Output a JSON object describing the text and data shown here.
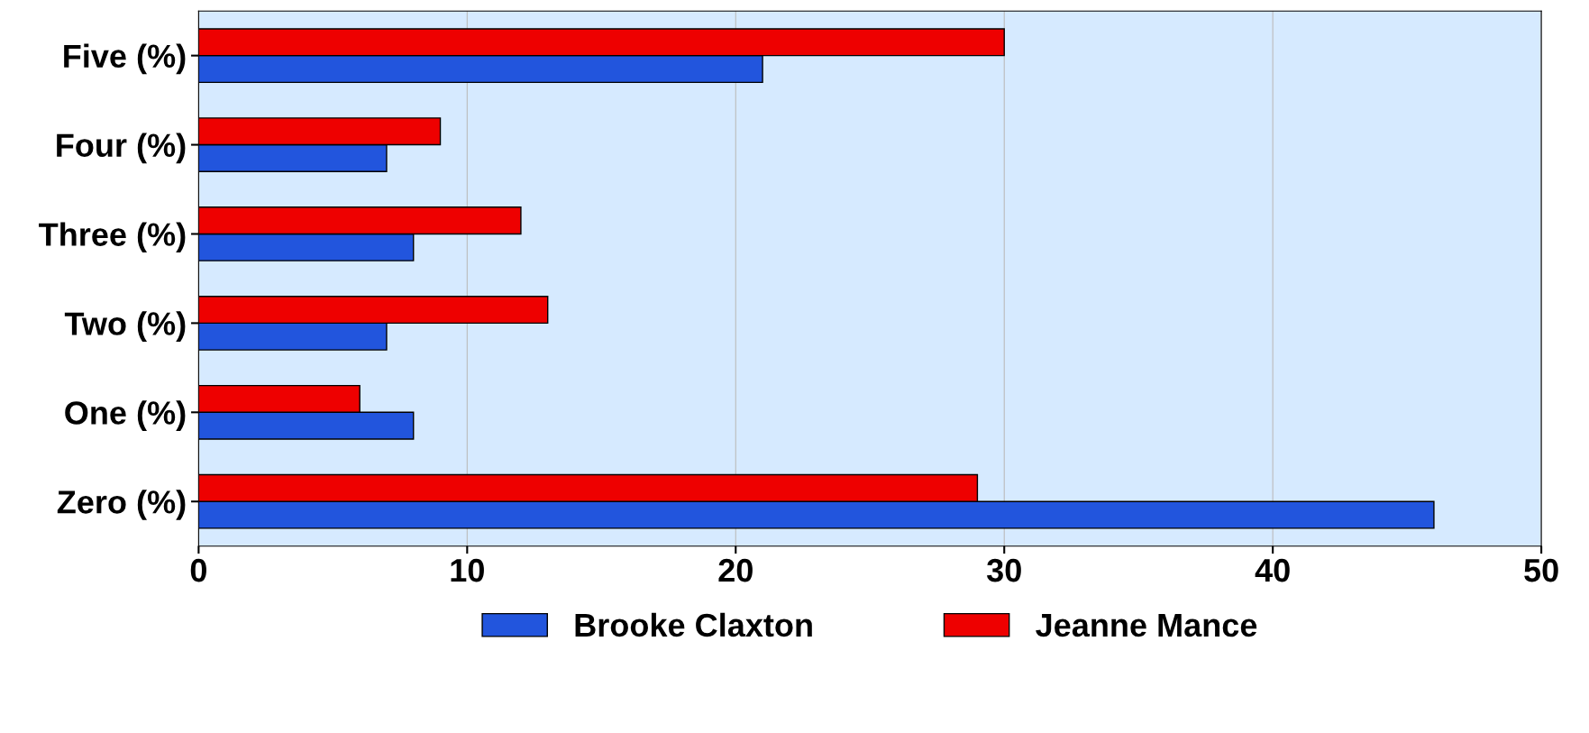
{
  "chart_data": {
    "type": "bar",
    "orientation": "horizontal",
    "categories": [
      "Five (%)",
      "Four (%)",
      "Three (%)",
      "Two (%)",
      "One (%)",
      "Zero (%)"
    ],
    "series": [
      {
        "name": "Brooke Claxton",
        "color": "#2255dd",
        "values": [
          21,
          7,
          8,
          7,
          8,
          46
        ]
      },
      {
        "name": "Jeanne Mance",
        "color": "#ee0000",
        "values": [
          30,
          9,
          12,
          13,
          6,
          29
        ]
      }
    ],
    "xlim": [
      0,
      50
    ],
    "xticks": [
      0,
      10,
      20,
      30,
      40,
      50
    ],
    "grid": "x",
    "legend": "bottom"
  }
}
